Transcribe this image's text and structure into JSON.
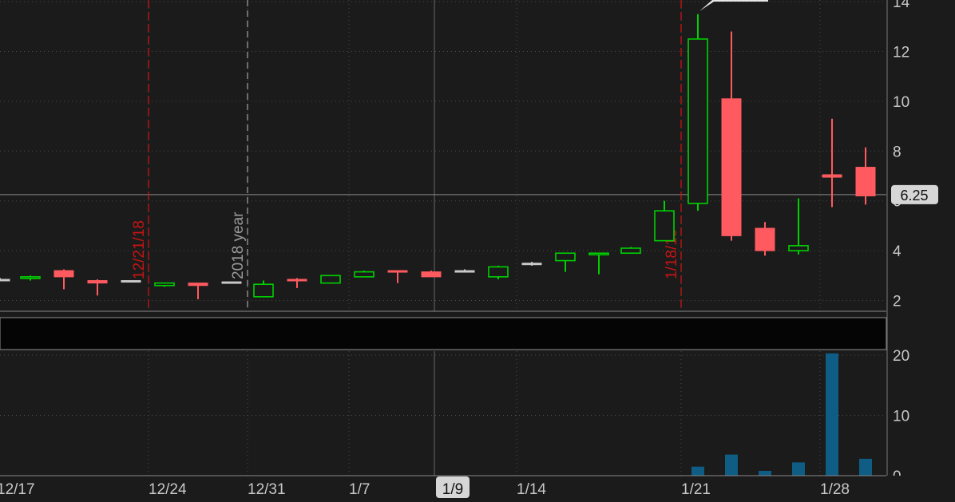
{
  "chart_data": [
    {
      "type": "candlestick",
      "y_axis_ticks": [
        "2",
        "4",
        "6",
        "8",
        "10",
        "12",
        "14"
      ],
      "ylim": [
        1.5,
        14.2
      ],
      "price_cursor": "6.25",
      "vertical_markers": [
        {
          "label": "12/21/18",
          "x": "12/21/18",
          "color": "#c81414"
        },
        {
          "label": "2018 year",
          "x": "2018 year",
          "color": "#9a9a9a"
        },
        {
          "label": "1/18/19",
          "x": "1/18/19",
          "color": "#c81414"
        }
      ],
      "candles": [
        {
          "date": "12/17",
          "open": 2.85,
          "high": 2.9,
          "low": 2.8,
          "close": 2.85
        },
        {
          "date": "12/18",
          "open": 2.9,
          "high": 3.0,
          "low": 2.8,
          "close": 2.95
        },
        {
          "date": "12/19",
          "open": 3.2,
          "high": 3.25,
          "low": 2.45,
          "close": 2.95
        },
        {
          "date": "12/20",
          "open": 2.8,
          "high": 2.85,
          "low": 2.2,
          "close": 2.7
        },
        {
          "date": "12/21/18",
          "open": 2.8,
          "high": 2.8,
          "low": 2.8,
          "close": 2.8
        },
        {
          "date": "12/24",
          "open": 2.6,
          "high": 2.7,
          "low": 2.55,
          "close": 2.7
        },
        {
          "date": "12/26",
          "open": 2.7,
          "high": 2.7,
          "low": 2.05,
          "close": 2.6
        },
        {
          "date": "12/27",
          "open": 2.75,
          "high": 2.75,
          "low": 2.75,
          "close": 2.75
        },
        {
          "date": "12/31",
          "open": 2.15,
          "high": 2.8,
          "low": 2.15,
          "close": 2.65
        },
        {
          "date": "1/2",
          "open": 2.85,
          "high": 2.9,
          "low": 2.5,
          "close": 2.8
        },
        {
          "date": "1/3",
          "open": 2.7,
          "high": 3.0,
          "low": 2.7,
          "close": 3.0
        },
        {
          "date": "1/4",
          "open": 2.95,
          "high": 3.2,
          "low": 2.95,
          "close": 3.15
        },
        {
          "date": "1/7",
          "open": 3.2,
          "high": 3.2,
          "low": 2.7,
          "close": 3.15
        },
        {
          "date": "1/8",
          "open": 3.15,
          "high": 3.2,
          "low": 2.95,
          "close": 2.95
        },
        {
          "date": "1/9",
          "open": 3.2,
          "high": 3.25,
          "low": 3.15,
          "close": 3.2
        },
        {
          "date": "1/10",
          "open": 2.95,
          "high": 3.4,
          "low": 2.85,
          "close": 3.35
        },
        {
          "date": "1/11",
          "open": 3.5,
          "high": 3.55,
          "low": 3.4,
          "close": 3.5
        },
        {
          "date": "1/14",
          "open": 3.6,
          "high": 3.9,
          "low": 3.15,
          "close": 3.9
        },
        {
          "date": "1/15",
          "open": 3.85,
          "high": 3.9,
          "low": 3.05,
          "close": 3.9
        },
        {
          "date": "1/16",
          "open": 3.9,
          "high": 4.15,
          "low": 3.9,
          "close": 4.1
        },
        {
          "date": "1/17",
          "open": 4.4,
          "high": 6.0,
          "low": 4.4,
          "close": 5.6
        },
        {
          "date": "1/18/19",
          "open": 5.9,
          "high": 13.5,
          "low": 5.6,
          "close": 12.5
        },
        {
          "date": "1/22",
          "open": 10.1,
          "high": 12.8,
          "low": 4.4,
          "close": 4.6
        },
        {
          "date": "1/23",
          "open": 4.9,
          "high": 5.15,
          "low": 3.8,
          "close": 4.0
        },
        {
          "date": "1/24",
          "open": 4.0,
          "high": 6.1,
          "low": 3.85,
          "close": 4.2
        },
        {
          "date": "1/28",
          "open": 7.05,
          "high": 9.3,
          "low": 5.75,
          "close": 6.95
        },
        {
          "date": "1/29",
          "open": 7.35,
          "high": 8.15,
          "low": 5.85,
          "close": 6.2
        }
      ]
    },
    {
      "type": "bar",
      "y_axis_ticks": [
        "0",
        "10",
        "20"
      ],
      "ylim": [
        0,
        20.5
      ],
      "bars": [
        {
          "date": "1/18/19",
          "value": 1.5
        },
        {
          "date": "1/22",
          "value": 3.5
        },
        {
          "date": "1/23",
          "value": 0.8
        },
        {
          "date": "1/24",
          "value": 2.2
        },
        {
          "date": "1/28",
          "value": 20.3
        },
        {
          "date": "1/29",
          "value": 2.8
        }
      ]
    }
  ],
  "x_axis_labels": [
    "12/17",
    "12/24",
    "12/31",
    "1/7",
    "1/9",
    "1/14",
    "1/21",
    "1/28"
  ],
  "cursor_date": "1/9",
  "colors": {
    "background": "#1b1b1b",
    "grid": "#4a4a4a",
    "up_candle": "#00d000",
    "down_candle": "#ff5a5f",
    "flat_candle": "#c8c8c8",
    "volume": "#0f5c85",
    "marker_red": "#c81414",
    "axis_text": "#c8c8c8",
    "cursor_label_bg": "#c8c8c8"
  }
}
